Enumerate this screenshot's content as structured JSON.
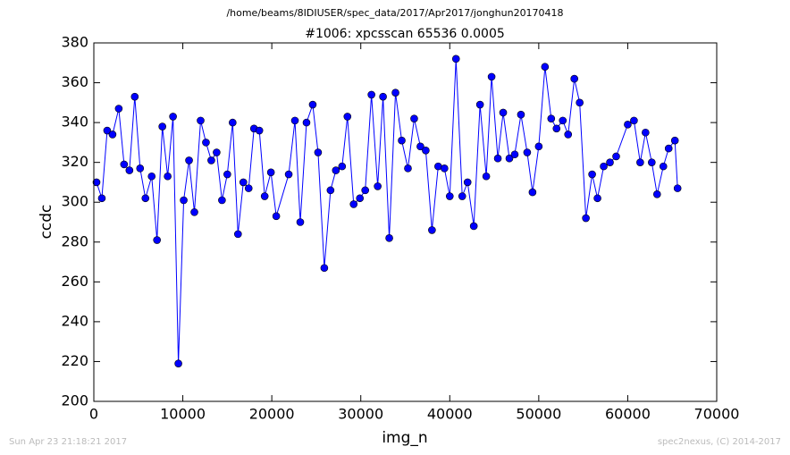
{
  "chart_data": {
    "type": "line",
    "suptitle": "/home/beams/8IDIUSER/spec_data/2017/Apr2017/jonghun20170418",
    "title": "#1006: xpcsscan 65536 0.0005",
    "x_label": "img_n",
    "y_label": "ccdc",
    "xlim": [
      0,
      70000
    ],
    "xticks": [
      0,
      10000,
      20000,
      30000,
      40000,
      50000,
      60000,
      70000
    ],
    "ylim": [
      200,
      380
    ],
    "yticks": [
      200,
      220,
      240,
      260,
      280,
      300,
      320,
      340,
      360,
      380
    ],
    "grid": false,
    "series": [
      {
        "name": "ccdc",
        "color": "#0000ff",
        "x": [
          300,
          900,
          1500,
          2100,
          2800,
          3400,
          4000,
          4600,
          5200,
          5800,
          6500,
          7100,
          7700,
          8300,
          8900,
          9500,
          10100,
          10700,
          11300,
          12000,
          12600,
          13200,
          13800,
          14400,
          15000,
          15600,
          16200,
          16800,
          17400,
          18000,
          18600,
          19200,
          19900,
          20500,
          21900,
          22600,
          23200,
          23900,
          24600,
          25200,
          25900,
          26600,
          27200,
          27900,
          28500,
          29200,
          29900,
          30500,
          31200,
          31900,
          32500,
          33200,
          33900,
          34600,
          35300,
          36000,
          36700,
          37300,
          38000,
          38700,
          39400,
          40000,
          40700,
          41400,
          42000,
          42700,
          43400,
          44100,
          44700,
          45400,
          46000,
          46700,
          47300,
          48000,
          48700,
          49300,
          50000,
          50700,
          51400,
          52000,
          52700,
          53300,
          54000,
          54600,
          55300,
          56000,
          56600,
          57300,
          58000,
          58700,
          60000,
          60700,
          61400,
          62000,
          62700,
          63300,
          64000,
          64600,
          65300,
          65600
        ],
        "values": [
          310,
          302,
          336,
          334,
          347,
          319,
          316,
          353,
          317,
          302,
          313,
          281,
          338,
          313,
          343,
          219,
          301,
          321,
          295,
          341,
          330,
          321,
          325,
          301,
          314,
          340,
          284,
          310,
          307,
          337,
          336,
          303,
          315,
          293,
          314,
          341,
          290,
          340,
          349,
          325,
          267,
          306,
          316,
          318,
          343,
          299,
          302,
          306,
          354,
          308,
          353,
          282,
          355,
          331,
          317,
          342,
          328,
          326,
          286,
          318,
          317,
          303,
          372,
          303,
          310,
          288,
          349,
          313,
          363,
          322,
          345,
          322,
          324,
          344,
          325,
          305,
          328,
          368,
          342,
          337,
          341,
          334,
          362,
          350,
          292,
          314,
          302,
          318,
          320,
          323,
          339,
          341,
          320,
          335,
          320,
          304,
          318,
          327,
          331,
          307
        ]
      }
    ]
  },
  "footer": {
    "timestamp": "Sun Apr 23 21:18:21 2017",
    "credit": "spec2nexus, (C) 2014-2017"
  }
}
